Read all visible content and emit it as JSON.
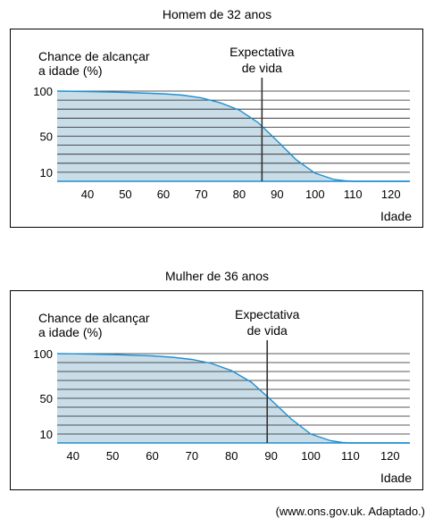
{
  "source_note": "(www.ons.gov.uk. Adaptado.)",
  "chart_data": [
    {
      "type": "area",
      "title": "Homem de 32 anos",
      "ylabel_line1": "Chance de alcançar",
      "ylabel_line2": "a idade (%)",
      "xlabel": "Idade",
      "marker_label_line1": "Expectativa",
      "marker_label_line2": "de vida",
      "marker_x": 86,
      "xlim": [
        32,
        125
      ],
      "ylim": [
        0,
        100
      ],
      "x_ticks": [
        40,
        50,
        60,
        70,
        80,
        90,
        100,
        110,
        120
      ],
      "y_ticks": [
        10,
        50,
        100
      ],
      "grid": true,
      "x": [
        32,
        40,
        50,
        60,
        65,
        70,
        75,
        80,
        85,
        90,
        95,
        100,
        105,
        108,
        110,
        125
      ],
      "values": [
        100,
        99.5,
        98.5,
        97,
        95.5,
        92.5,
        87,
        79,
        65,
        45,
        24,
        9,
        2,
        0.5,
        0,
        0
      ],
      "fill_color": "#c9dde9",
      "line_color": "#1d8fd1"
    },
    {
      "type": "area",
      "title": "Mulher de 36 anos",
      "ylabel_line1": "Chance de alcançar",
      "ylabel_line2": "a idade (%)",
      "xlabel": "Idade",
      "marker_label_line1": "Expectativa",
      "marker_label_line2": "de vida",
      "marker_x": 89,
      "xlim": [
        36,
        125
      ],
      "ylim": [
        0,
        100
      ],
      "x_ticks": [
        40,
        50,
        60,
        70,
        80,
        90,
        100,
        110,
        120
      ],
      "y_ticks": [
        10,
        50,
        100
      ],
      "grid": true,
      "x": [
        36,
        40,
        50,
        60,
        65,
        70,
        75,
        80,
        85,
        90,
        95,
        100,
        105,
        108,
        110,
        125
      ],
      "values": [
        100,
        99.8,
        99,
        97.5,
        96,
        93.5,
        89,
        81,
        68,
        48,
        27,
        10,
        2.5,
        0.5,
        0,
        0
      ],
      "fill_color": "#c9dde9",
      "line_color": "#1d8fd1"
    }
  ]
}
